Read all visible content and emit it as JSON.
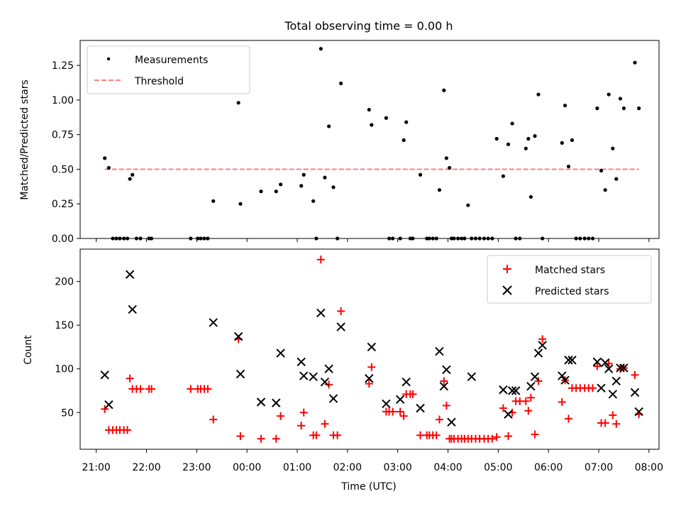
{
  "chart_data": [
    {
      "type": "scatter",
      "title": "Total observing time = 0.00 h",
      "xlabel": "",
      "ylabel": "Matched/Predicted stars",
      "ylim": [
        0,
        1.43
      ],
      "yticks": [
        0.0,
        0.25,
        0.5,
        0.75,
        1.0,
        1.25
      ],
      "ytick_labels": [
        "0.00",
        "0.25",
        "0.50",
        "0.75",
        "1.00",
        "1.25"
      ],
      "xlim": [
        20.68,
        32.2
      ],
      "legend_position": "upper left",
      "grid": false,
      "series": [
        {
          "name": "Measurements",
          "marker": "dot",
          "color": "#000000",
          "x": [
            21.17,
            21.25,
            21.33,
            21.4,
            21.47,
            21.55,
            21.62,
            21.67,
            21.72,
            21.8,
            21.88,
            22.05,
            22.1,
            22.88,
            23.02,
            23.08,
            23.15,
            23.22,
            23.33,
            23.83,
            23.87,
            24.28,
            24.58,
            24.67,
            25.08,
            25.13,
            25.32,
            25.38,
            25.47,
            25.55,
            25.63,
            25.72,
            25.8,
            25.87,
            26.43,
            26.48,
            26.77,
            26.83,
            26.9,
            27.05,
            27.12,
            27.17,
            27.25,
            27.3,
            27.45,
            27.58,
            27.63,
            27.7,
            27.77,
            27.83,
            27.92,
            27.97,
            28.03,
            28.07,
            28.12,
            28.2,
            28.27,
            28.33,
            28.4,
            28.47,
            28.55,
            28.63,
            28.72,
            28.8,
            28.88,
            28.97,
            29.1,
            29.2,
            29.28,
            29.35,
            29.43,
            29.55,
            29.6,
            29.65,
            29.73,
            29.8,
            29.88,
            30.27,
            30.33,
            30.4,
            30.47,
            30.55,
            30.63,
            30.72,
            30.8,
            30.88,
            30.97,
            31.05,
            31.13,
            31.2,
            31.28,
            31.35,
            31.43,
            31.5,
            31.72,
            31.8
          ],
          "y": [
            0.58,
            0.51,
            0.0,
            0.0,
            0.0,
            0.0,
            0.0,
            0.43,
            0.46,
            0.0,
            0.0,
            0.0,
            0.0,
            0.0,
            0.0,
            0.0,
            0.0,
            0.0,
            0.27,
            0.98,
            0.25,
            0.34,
            0.34,
            0.39,
            0.38,
            0.46,
            0.27,
            0.0,
            1.37,
            0.44,
            0.81,
            0.37,
            0.0,
            1.12,
            0.93,
            0.82,
            0.87,
            0.0,
            0.0,
            0.0,
            0.71,
            0.84,
            0.0,
            0.0,
            0.46,
            0.0,
            0.0,
            0.0,
            0.0,
            0.35,
            1.07,
            0.58,
            0.51,
            0.0,
            0.0,
            0.0,
            0.0,
            0.0,
            0.24,
            0.0,
            0.0,
            0.0,
            0.0,
            0.0,
            0.0,
            0.72,
            0.45,
            0.68,
            0.83,
            0.0,
            0.0,
            0.65,
            0.72,
            0.3,
            0.74,
            1.04,
            0.0,
            0.69,
            0.96,
            0.52,
            0.71,
            0.0,
            0.0,
            0.0,
            0.0,
            0.0,
            0.94,
            0.49,
            0.35,
            1.04,
            0.65,
            0.43,
            1.01,
            0.94,
            1.27,
            0.94
          ]
        },
        {
          "name": "Threshold",
          "line": "dashed",
          "color": "#ff7f7f",
          "x": [
            21.17,
            31.8
          ],
          "y": [
            0.5,
            0.5
          ]
        }
      ]
    },
    {
      "type": "scatter",
      "title": "",
      "xlabel": "Time (UTC)",
      "ylabel": "Count",
      "ylim": [
        8,
        237
      ],
      "yticks": [
        50,
        100,
        150,
        200
      ],
      "ytick_labels": [
        "50",
        "100",
        "150",
        "200"
      ],
      "xlim": [
        20.68,
        32.2
      ],
      "xticks": [
        21,
        22,
        23,
        24,
        25,
        26,
        27,
        28,
        29,
        30,
        31,
        32
      ],
      "xtick_labels": [
        "21:00",
        "22:00",
        "23:00",
        "00:00",
        "01:00",
        "02:00",
        "03:00",
        "04:00",
        "05:00",
        "06:00",
        "07:00",
        "08:00"
      ],
      "legend_position": "upper right",
      "grid": false,
      "series": [
        {
          "name": "Matched stars",
          "marker": "plus",
          "color": "#ff0000",
          "x": [
            21.17,
            21.25,
            21.33,
            21.4,
            21.47,
            21.55,
            21.62,
            21.67,
            21.72,
            21.8,
            21.88,
            22.05,
            22.1,
            22.88,
            23.02,
            23.08,
            23.15,
            23.22,
            23.33,
            23.83,
            23.87,
            24.28,
            24.58,
            24.67,
            25.08,
            25.13,
            25.32,
            25.38,
            25.47,
            25.55,
            25.63,
            25.72,
            25.8,
            25.87,
            26.43,
            26.48,
            26.77,
            26.83,
            26.9,
            27.05,
            27.12,
            27.17,
            27.25,
            27.3,
            27.45,
            27.58,
            27.63,
            27.7,
            27.77,
            27.83,
            27.92,
            27.97,
            28.03,
            28.07,
            28.12,
            28.2,
            28.27,
            28.33,
            28.4,
            28.47,
            28.55,
            28.63,
            28.72,
            28.8,
            28.88,
            28.97,
            29.1,
            29.2,
            29.28,
            29.35,
            29.43,
            29.55,
            29.6,
            29.65,
            29.73,
            29.8,
            29.88,
            30.27,
            30.33,
            30.4,
            30.47,
            30.55,
            30.63,
            30.72,
            30.8,
            30.88,
            30.97,
            31.05,
            31.13,
            31.2,
            31.28,
            31.35,
            31.43,
            31.5,
            31.72,
            31.8
          ],
          "y": [
            54,
            30,
            30,
            30,
            30,
            30,
            30,
            89,
            77,
            77,
            77,
            77,
            77,
            77,
            77,
            77,
            77,
            77,
            42,
            134,
            23,
            20,
            20,
            46,
            35,
            50,
            24,
            24,
            225,
            37,
            82,
            24,
            24,
            166,
            83,
            102,
            51,
            51,
            51,
            51,
            46,
            71,
            71,
            71,
            24,
            24,
            24,
            24,
            24,
            42,
            86,
            58,
            20,
            20,
            20,
            20,
            20,
            20,
            20,
            20,
            20,
            20,
            20,
            20,
            20,
            22,
            55,
            23,
            50,
            63,
            63,
            63,
            52,
            67,
            25,
            86,
            134,
            62,
            87,
            43,
            78,
            78,
            78,
            78,
            78,
            78,
            103,
            38,
            38,
            106,
            47,
            37,
            100,
            101,
            93,
            48
          ]
        },
        {
          "name": "Predicted stars",
          "marker": "x",
          "color": "#000000",
          "x": [
            21.17,
            21.25,
            21.67,
            21.72,
            23.33,
            23.83,
            23.87,
            24.28,
            24.58,
            24.67,
            25.08,
            25.13,
            25.32,
            25.47,
            25.55,
            25.63,
            25.72,
            25.87,
            26.43,
            26.48,
            26.77,
            27.05,
            27.17,
            27.45,
            27.83,
            27.92,
            27.97,
            28.07,
            28.47,
            29.1,
            29.2,
            29.28,
            29.35,
            29.65,
            29.73,
            29.8,
            29.88,
            30.27,
            30.33,
            30.4,
            30.47,
            30.97,
            31.05,
            31.13,
            31.2,
            31.28,
            31.35,
            31.43,
            31.5,
            31.72,
            31.8
          ],
          "y": [
            93,
            59,
            208,
            168,
            153,
            137,
            94,
            62,
            61,
            118,
            108,
            92,
            91,
            164,
            85,
            100,
            66,
            148,
            89,
            125,
            60,
            65,
            85,
            55,
            120,
            80,
            99,
            39,
            91,
            76,
            48,
            75,
            75,
            80,
            91,
            118,
            127,
            92,
            87,
            110,
            110,
            108,
            78,
            107,
            100,
            71,
            86,
            101,
            101,
            73,
            51
          ]
        }
      ]
    }
  ]
}
